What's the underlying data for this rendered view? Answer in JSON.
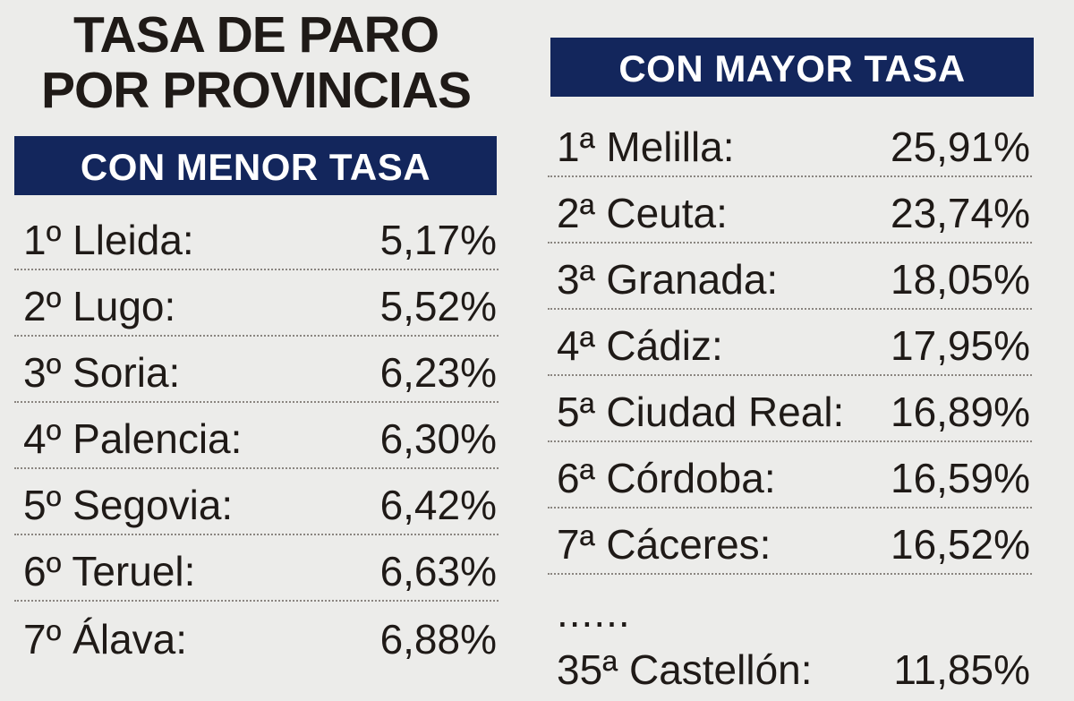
{
  "title": {
    "line1": "TASA DE PARO",
    "line2": "POR PROVINCIAS"
  },
  "lowest": {
    "header": "CON MENOR TASA",
    "rows": [
      {
        "name": "1º Lleida:",
        "value": "5,17%"
      },
      {
        "name": "2º Lugo:",
        "value": "5,52%"
      },
      {
        "name": "3º Soria:",
        "value": "6,23%"
      },
      {
        "name": "4º Palencia:",
        "value": "6,30%"
      },
      {
        "name": "5º Segovia:",
        "value": "6,42%"
      },
      {
        "name": "6º Teruel:",
        "value": "6,63%"
      },
      {
        "name": "7º Álava:",
        "value": "6,88%"
      }
    ]
  },
  "highest": {
    "header": "CON MAYOR TASA",
    "rows": [
      {
        "name": "1ª Melilla:",
        "value": "25,91%"
      },
      {
        "name": "2ª Ceuta:",
        "value": "23,74%"
      },
      {
        "name": "3ª Granada:",
        "value": "18,05%"
      },
      {
        "name": "4ª Cádiz:",
        "value": "17,95%"
      },
      {
        "name": "5ª Ciudad Real:",
        "value": "16,89%"
      },
      {
        "name": "6ª Córdoba:",
        "value": "16,59%"
      },
      {
        "name": "7ª Cáceres:",
        "value": "16,52%"
      }
    ],
    "ellipsis": "......",
    "last": {
      "name": "35ª Castellón:",
      "value": "11,85%"
    }
  },
  "colors": {
    "header_bg": "#13265c",
    "header_text": "#ffffff",
    "text": "#1f1a17",
    "background": "#ececea"
  }
}
